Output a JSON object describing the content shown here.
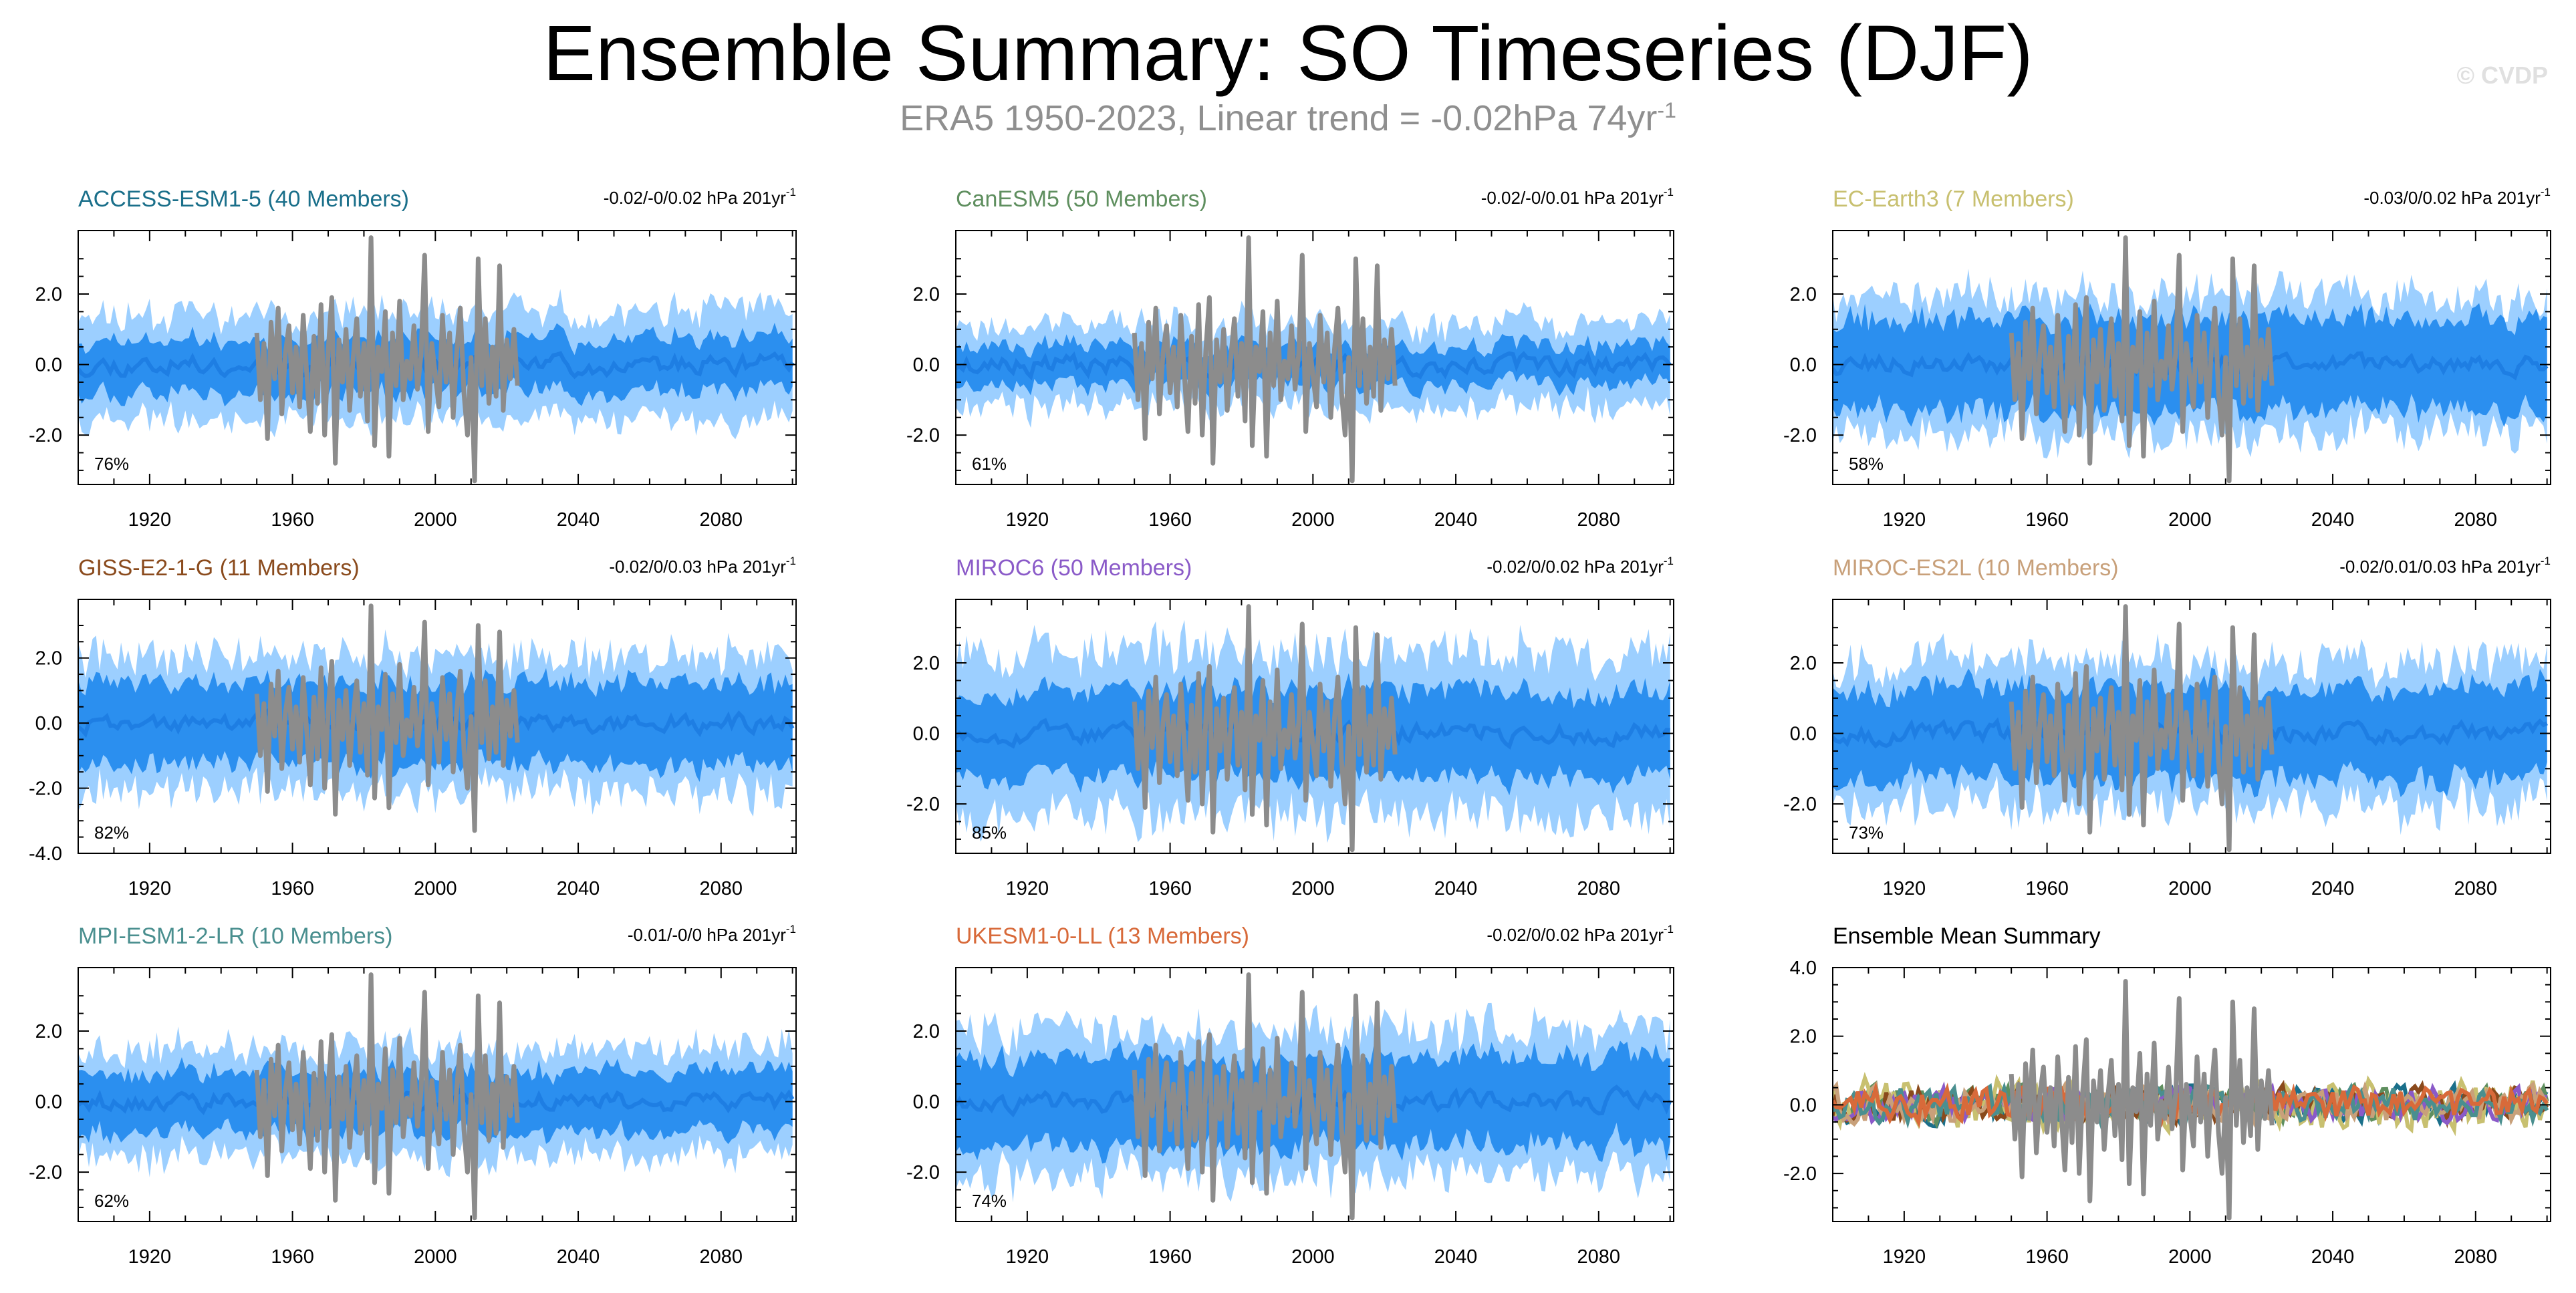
{
  "title": "Ensemble Summary: SO Timeseries (DJF)",
  "subtitle": {
    "main": "ERA5 1950-2023, Linear trend = -0.02hPa 74yr",
    "superscript": "-1"
  },
  "watermark": "© CVDP",
  "colors": {
    "observed": "#8c8c8c",
    "band_outer": "#9ccfff",
    "band_inner": "#2b8fef",
    "ensemble_mean": "#1e7ee3"
  },
  "chart_data": [
    {
      "type": "area",
      "model": "ACCESS-ESM1-5",
      "title": "ACCESS-ESM1-5 (40 Members)",
      "title_color": "#1a6f8a",
      "trend": "-0.02/-0/0.02 hPa 201yr",
      "trend_sup": "-1",
      "percent": "76%",
      "xlim": [
        1900,
        2101
      ],
      "ylim": [
        -3.4,
        3.8
      ],
      "yticks": [
        2.0,
        0.0,
        -2.0
      ],
      "ytick_labels": [
        "2.0",
        "0.0",
        "-2.0"
      ],
      "xticks": [
        1920,
        1960,
        2000,
        2040,
        2080
      ],
      "band_outer": 1.45,
      "band_inner": 0.75,
      "seed": 11
    },
    {
      "type": "area",
      "model": "CanESM5",
      "title": "CanESM5 (50 Members)",
      "title_color": "#5f8f5f",
      "trend": "-0.02/-0/0.01 hPa 201yr",
      "trend_sup": "-1",
      "percent": "61%",
      "xlim": [
        1900,
        2101
      ],
      "ylim": [
        -3.4,
        3.8
      ],
      "yticks": [
        2.0,
        0.0,
        -2.0
      ],
      "ytick_labels": [
        "2.0",
        "0.0",
        "-2.0"
      ],
      "xticks": [
        1920,
        1960,
        2000,
        2040,
        2080
      ],
      "band_outer": 1.15,
      "band_inner": 0.55,
      "seed": 23
    },
    {
      "type": "area",
      "model": "EC-Earth3",
      "title": "EC-Earth3 (7 Members)",
      "title_color": "#c8c070",
      "trend": "-0.03/0/0.02 hPa 201yr",
      "trend_sup": "-1",
      "percent": "58%",
      "xlim": [
        1900,
        2101
      ],
      "ylim": [
        -3.4,
        3.8
      ],
      "yticks": [
        2.0,
        0.0,
        -2.0
      ],
      "ytick_labels": [
        "2.0",
        "0.0",
        "-2.0"
      ],
      "xticks": [
        1920,
        1960,
        2000,
        2040,
        2080
      ],
      "band_outer": 1.9,
      "band_inner": 1.3,
      "seed": 37
    },
    {
      "type": "area",
      "model": "GISS-E2-1-G",
      "title": "GISS-E2-1-G (11 Members)",
      "title_color": "#8a4a1c",
      "trend": "-0.02/0/0.03 hPa 201yr",
      "trend_sup": "-1",
      "percent": "82%",
      "xlim": [
        1900,
        2101
      ],
      "ylim": [
        -4.0,
        3.8
      ],
      "yticks": [
        2.0,
        0.0,
        -2.0,
        -4.0
      ],
      "ytick_labels": [
        "2.0",
        "0.0",
        "-2.0",
        "-4.0"
      ],
      "xticks": [
        1920,
        1960,
        2000,
        2040,
        2080
      ],
      "band_outer": 2.0,
      "band_inner": 1.25,
      "seed": 41
    },
    {
      "type": "area",
      "model": "MIROC6",
      "title": "MIROC6 (50 Members)",
      "title_color": "#8a5ac8",
      "trend": "-0.02/0/0.02 hPa 201yr",
      "trend_sup": "-1",
      "percent": "85%",
      "xlim": [
        1900,
        2101
      ],
      "ylim": [
        -3.4,
        3.8
      ],
      "yticks": [
        2.0,
        0.0,
        -2.0
      ],
      "ytick_labels": [
        "2.0",
        "0.0",
        "-2.0"
      ],
      "xticks": [
        1920,
        1960,
        2000,
        2040,
        2080
      ],
      "band_outer": 2.3,
      "band_inner": 1.2,
      "seed": 53
    },
    {
      "type": "area",
      "model": "MIROC-ES2L",
      "title": "MIROC-ES2L (10 Members)",
      "title_color": "#c8a07a",
      "trend": "-0.02/0.01/0.03 hPa 201yr",
      "trend_sup": "-1",
      "percent": "73%",
      "xlim": [
        1900,
        2101
      ],
      "ylim": [
        -3.4,
        3.8
      ],
      "yticks": [
        2.0,
        0.0,
        -2.0
      ],
      "ytick_labels": [
        "2.0",
        "0.0",
        "-2.0"
      ],
      "xticks": [
        1920,
        1960,
        2000,
        2040,
        2080
      ],
      "band_outer": 2.0,
      "band_inner": 1.3,
      "seed": 67
    },
    {
      "type": "area",
      "model": "MPI-ESM1-2-LR",
      "title": "MPI-ESM1-2-LR (10 Members)",
      "title_color": "#4a8f8f",
      "trend": "-0.01/-0/0 hPa 201yr",
      "trend_sup": "-1",
      "percent": "62%",
      "xlim": [
        1900,
        2101
      ],
      "ylim": [
        -3.4,
        3.8
      ],
      "yticks": [
        2.0,
        0.0,
        -2.0
      ],
      "ytick_labels": [
        "2.0",
        "0.0",
        "-2.0"
      ],
      "xticks": [
        1920,
        1960,
        2000,
        2040,
        2080
      ],
      "band_outer": 1.5,
      "band_inner": 0.85,
      "seed": 79
    },
    {
      "type": "area",
      "model": "UKESM1-0-LL",
      "title": "UKESM1-0-LL (13 Members)",
      "title_color": "#d86a3a",
      "trend": "-0.02/0/0.02 hPa 201yr",
      "trend_sup": "-1",
      "percent": "74%",
      "xlim": [
        1900,
        2101
      ],
      "ylim": [
        -3.4,
        3.8
      ],
      "yticks": [
        2.0,
        0.0,
        -2.0
      ],
      "ytick_labels": [
        "2.0",
        "0.0",
        "-2.0"
      ],
      "xticks": [
        1920,
        1960,
        2000,
        2040,
        2080
      ],
      "band_outer": 2.0,
      "band_inner": 1.25,
      "seed": 83
    },
    {
      "type": "line",
      "model": "Ensemble Mean Summary",
      "title": "Ensemble Mean Summary",
      "title_color": "#000000",
      "xlim": [
        1900,
        2101
      ],
      "ylim": [
        -3.4,
        4.0
      ],
      "yticks": [
        4.0,
        2.0,
        0.0,
        -2.0
      ],
      "ytick_labels": [
        "4.0",
        "2.0",
        "0.0",
        "-2.0"
      ],
      "xticks": [
        1920,
        1960,
        2000,
        2040,
        2080
      ],
      "series_colors": [
        "#1a6f8a",
        "#5f8f5f",
        "#c8c070",
        "#8a4a1c",
        "#8a5ac8",
        "#c8a07a",
        "#4a8f8f",
        "#d86a3a"
      ],
      "seed": 97
    }
  ],
  "observed": {
    "name": "ERA5",
    "years": [
      1950,
      1951,
      1952,
      1953,
      1954,
      1955,
      1956,
      1957,
      1958,
      1959,
      1960,
      1961,
      1962,
      1963,
      1964,
      1965,
      1966,
      1967,
      1968,
      1969,
      1970,
      1971,
      1972,
      1973,
      1974,
      1975,
      1976,
      1977,
      1978,
      1979,
      1980,
      1981,
      1982,
      1983,
      1984,
      1985,
      1986,
      1987,
      1988,
      1989,
      1990,
      1991,
      1992,
      1993,
      1994,
      1995,
      1996,
      1997,
      1998,
      1999,
      2000,
      2001,
      2002,
      2003,
      2004,
      2005,
      2006,
      2007,
      2008,
      2009,
      2010,
      2011,
      2012,
      2013,
      2014,
      2015,
      2016,
      2017,
      2018,
      2019,
      2020,
      2021,
      2022,
      2023
    ],
    "values": [
      0.9,
      -1.0,
      0.6,
      -2.1,
      1.2,
      -0.4,
      1.6,
      -1.4,
      0.3,
      1.1,
      -0.8,
      0.5,
      -1.2,
      1.4,
      -0.3,
      -1.9,
      0.8,
      -1.1,
      1.7,
      -2.0,
      0.4,
      1.9,
      -2.8,
      0.7,
      -0.5,
      1.0,
      -1.3,
      0.2,
      1.3,
      -0.9,
      0.6,
      -1.6,
      3.6,
      -2.3,
      0.5,
      -0.2,
      1.5,
      -2.6,
      0.9,
      -0.6,
      1.8,
      -1.0,
      0.1,
      -0.4,
      1.1,
      -0.7,
      0.3,
      3.1,
      -1.9,
      0.6,
      -0.3,
      -1.2,
      1.4,
      -0.5,
      0.9,
      -1.5,
      0.4,
      1.6,
      -0.8,
      -2.0,
      0.2,
      -3.3,
      3.0,
      -0.6,
      1.3,
      -1.1,
      0.5,
      -0.9,
      2.8,
      -1.3,
      0.7,
      -0.4,
      1.0,
      -0.6
    ]
  }
}
